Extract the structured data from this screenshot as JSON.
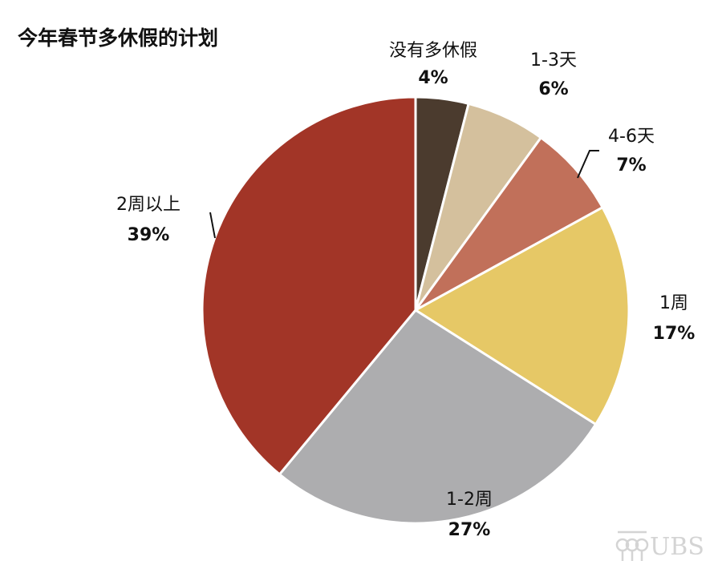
{
  "chart_data": {
    "type": "pie",
    "title": "今年春节多休假的计划",
    "categories": [
      "没有多休假",
      "1-3天",
      "4-6天",
      "1周",
      "1-2周",
      "2周以上"
    ],
    "values": [
      4,
      6,
      7,
      17,
      27,
      39
    ],
    "value_labels": [
      "4%",
      "6%",
      "7%",
      "17%",
      "27%",
      "39%"
    ],
    "colors": [
      "#4b3b2e",
      "#d4c09d",
      "#c1705a",
      "#e6c866",
      "#adadaf",
      "#a23527"
    ],
    "start_angle_deg": 0,
    "direction": "clockwise",
    "legend": "none"
  },
  "watermark": {
    "text": "UBS",
    "icon": "ubs-keys-logo-icon"
  }
}
